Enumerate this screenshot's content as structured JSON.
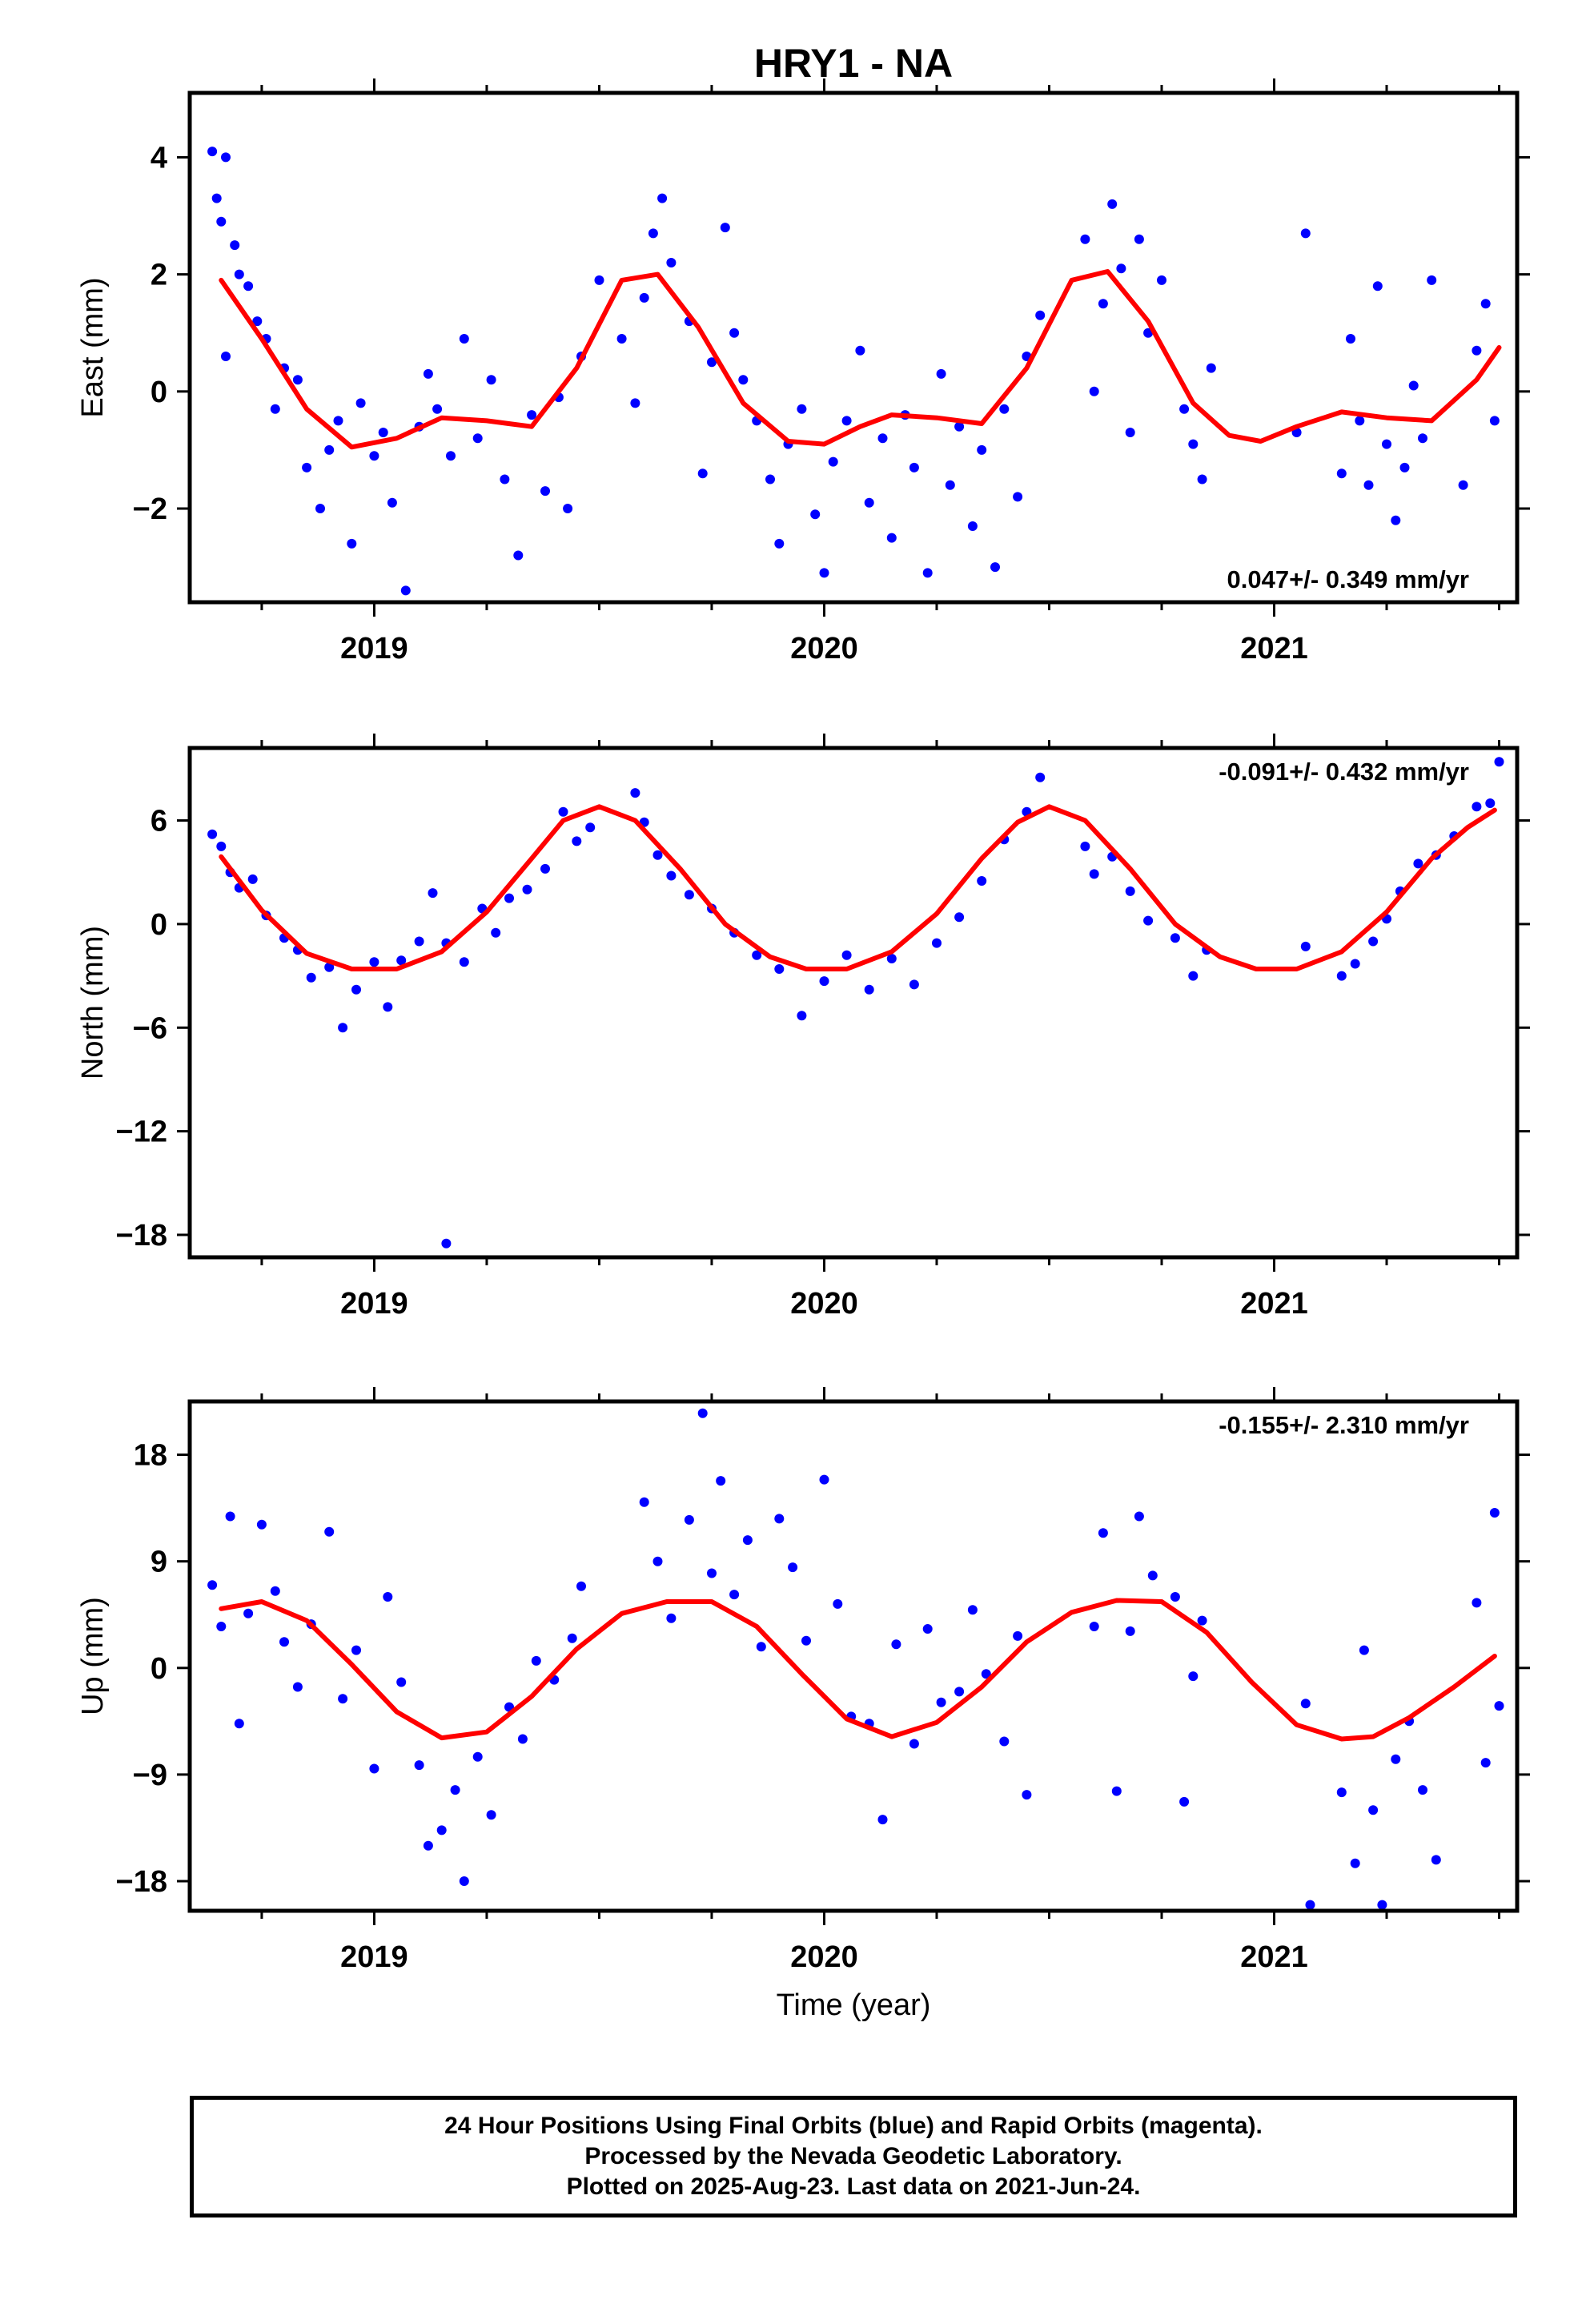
{
  "title": "HRY1 - NA",
  "xlabel": "Time (year)",
  "footer": [
    "24 Hour Positions Using Final Orbits (blue) and Rapid Orbits (magenta).",
    "Processed by the Nevada Geodetic Laboratory.",
    "Plotted on 2025-Aug-23. Last data on 2021-Jun-24."
  ],
  "colors": {
    "points": "#0000ff",
    "fit": "#ff0000",
    "frame": "#000000"
  },
  "chart_data": [
    {
      "type": "scatter",
      "ylabel": "East (mm)",
      "xlim": [
        2018.59,
        2021.54
      ],
      "ylim": [
        -3.6,
        5.1
      ],
      "xticks": [
        2019,
        2020,
        2021
      ],
      "yticks": [
        -2,
        0,
        2,
        4
      ],
      "yticklabels": [
        "−2",
        "0",
        "2",
        "4"
      ],
      "rate": "0.047+/- 0.349 mm/yr",
      "rate_position": "bottom-right",
      "fit": {
        "x": [
          2018.66,
          2018.75,
          2018.85,
          2018.95,
          2019.05,
          2019.15,
          2019.25,
          2019.35,
          2019.45,
          2019.55,
          2019.63,
          2019.72,
          2019.82,
          2019.92,
          2020.0,
          2020.08,
          2020.15,
          2020.25,
          2020.35,
          2020.45,
          2020.55,
          2020.63,
          2020.72,
          2020.82,
          2020.9,
          2020.97,
          2021.05,
          2021.15,
          2021.25,
          2021.35,
          2021.45,
          2021.5
        ],
        "y": [
          1.9,
          0.9,
          -0.3,
          -0.95,
          -0.8,
          -0.45,
          -0.5,
          -0.6,
          0.4,
          1.9,
          2.0,
          1.1,
          -0.2,
          -0.85,
          -0.9,
          -0.6,
          -0.4,
          -0.45,
          -0.55,
          0.4,
          1.9,
          2.05,
          1.2,
          -0.2,
          -0.75,
          -0.85,
          -0.6,
          -0.35,
          -0.45,
          -0.5,
          0.2,
          0.75
        ]
      },
      "x": [
        2018.64,
        2018.65,
        2018.66,
        2018.67,
        2018.67,
        2018.69,
        2018.7,
        2018.72,
        2018.74,
        2018.76,
        2018.78,
        2018.8,
        2018.83,
        2018.85,
        2018.88,
        2018.9,
        2018.92,
        2018.95,
        2018.97,
        2019.0,
        2019.02,
        2019.04,
        2019.07,
        2019.1,
        2019.12,
        2019.14,
        2019.17,
        2019.2,
        2019.23,
        2019.26,
        2019.29,
        2019.32,
        2019.35,
        2019.38,
        2019.41,
        2019.43,
        2019.46,
        2019.5,
        2019.55,
        2019.58,
        2019.6,
        2019.62,
        2019.64,
        2019.66,
        2019.7,
        2019.73,
        2019.75,
        2019.78,
        2019.8,
        2019.82,
        2019.85,
        2019.88,
        2019.9,
        2019.92,
        2019.95,
        2019.98,
        2020.0,
        2020.02,
        2020.05,
        2020.08,
        2020.1,
        2020.13,
        2020.15,
        2020.18,
        2020.2,
        2020.23,
        2020.26,
        2020.28,
        2020.3,
        2020.33,
        2020.35,
        2020.38,
        2020.4,
        2020.43,
        2020.45,
        2020.48,
        2020.58,
        2020.6,
        2020.62,
        2020.64,
        2020.66,
        2020.68,
        2020.7,
        2020.72,
        2020.75,
        2020.8,
        2020.82,
        2020.84,
        2020.86,
        2021.05,
        2021.07,
        2021.15,
        2021.17,
        2021.19,
        2021.21,
        2021.23,
        2021.25,
        2021.27,
        2021.29,
        2021.31,
        2021.33,
        2021.35,
        2021.42,
        2021.45,
        2021.47,
        2021.49
      ],
      "y": [
        4.1,
        3.3,
        2.9,
        0.6,
        4.0,
        2.5,
        2.0,
        1.8,
        1.2,
        0.9,
        -0.3,
        0.4,
        0.2,
        -1.3,
        -2.0,
        -1.0,
        -0.5,
        -2.6,
        -0.2,
        -1.1,
        -0.7,
        -1.9,
        -3.4,
        -0.6,
        0.3,
        -0.3,
        -1.1,
        0.9,
        -0.8,
        0.2,
        -1.5,
        -2.8,
        -0.4,
        -1.7,
        -0.1,
        -2.0,
        0.6,
        1.9,
        0.9,
        -0.2,
        1.6,
        2.7,
        3.3,
        2.2,
        1.2,
        -1.4,
        0.5,
        2.8,
        1.0,
        0.2,
        -0.5,
        -1.5,
        -2.6,
        -0.9,
        -0.3,
        -2.1,
        -3.1,
        -1.2,
        -0.5,
        0.7,
        -1.9,
        -0.8,
        -2.5,
        -0.4,
        -1.3,
        -3.1,
        0.3,
        -1.6,
        -0.6,
        -2.3,
        -1.0,
        -3.0,
        -0.3,
        -1.8,
        0.6,
        1.3,
        2.6,
        0.0,
        1.5,
        3.2,
        2.1,
        -0.7,
        2.6,
        1.0,
        1.9,
        -0.3,
        -0.9,
        -1.5,
        0.4,
        -0.7,
        2.7,
        -1.4,
        0.9,
        -0.5,
        -1.6,
        1.8,
        -0.9,
        -2.2,
        -1.3,
        0.1,
        -0.8,
        1.9,
        -1.6,
        0.7,
        1.5,
        -0.5
      ]
    },
    {
      "type": "scatter",
      "ylabel": "North (mm)",
      "xlim": [
        2018.59,
        2021.54
      ],
      "ylim": [
        -19.3,
        10.2
      ],
      "xticks": [
        2019,
        2020,
        2021
      ],
      "yticks": [
        -18,
        -12,
        -6,
        0,
        6
      ],
      "yticklabels": [
        "−18",
        "−12",
        "−6",
        "0",
        "6"
      ],
      "rate": "-0.091+/- 0.432 mm/yr",
      "rate_position": "top-right",
      "fit": {
        "x": [
          2018.66,
          2018.75,
          2018.85,
          2018.95,
          2019.05,
          2019.15,
          2019.25,
          2019.35,
          2019.42,
          2019.5,
          2019.58,
          2019.68,
          2019.78,
          2019.88,
          2019.96,
          2020.05,
          2020.15,
          2020.25,
          2020.35,
          2020.43,
          2020.5,
          2020.58,
          2020.68,
          2020.78,
          2020.88,
          2020.96,
          2021.05,
          2021.15,
          2021.25,
          2021.35,
          2021.43,
          2021.49
        ],
        "y": [
          3.9,
          0.8,
          -1.7,
          -2.6,
          -2.6,
          -1.6,
          0.7,
          3.8,
          6.0,
          6.8,
          6.0,
          3.2,
          0.0,
          -1.9,
          -2.6,
          -2.6,
          -1.6,
          0.6,
          3.8,
          5.9,
          6.8,
          6.0,
          3.2,
          0.0,
          -1.9,
          -2.6,
          -2.6,
          -1.6,
          0.7,
          3.8,
          5.6,
          6.6
        ]
      },
      "x": [
        2018.64,
        2018.66,
        2018.68,
        2018.7,
        2018.73,
        2018.76,
        2018.8,
        2018.83,
        2018.86,
        2018.9,
        2018.93,
        2018.96,
        2019.0,
        2019.03,
        2019.06,
        2019.1,
        2019.13,
        2019.16,
        2019.2,
        2019.24,
        2019.27,
        2019.3,
        2019.34,
        2019.38,
        2019.42,
        2019.45,
        2019.48,
        2019.58,
        2019.6,
        2019.63,
        2019.66,
        2019.7,
        2019.75,
        2019.8,
        2019.85,
        2019.9,
        2019.95,
        2020.0,
        2020.05,
        2020.1,
        2020.15,
        2020.2,
        2020.25,
        2020.3,
        2020.35,
        2020.4,
        2020.45,
        2020.48,
        2020.58,
        2020.6,
        2020.64,
        2020.68,
        2020.72,
        2020.78,
        2020.82,
        2020.85,
        2021.07,
        2021.15,
        2021.18,
        2021.22,
        2021.25,
        2021.28,
        2021.32,
        2021.36,
        2021.4,
        2021.45,
        2021.48,
        2021.5,
        2019.16
      ],
      "y": [
        5.2,
        4.5,
        3.0,
        2.1,
        2.6,
        0.5,
        -0.8,
        -1.5,
        -3.1,
        -2.5,
        -6.0,
        -3.8,
        -2.2,
        -4.8,
        -2.1,
        -1.0,
        1.8,
        -1.1,
        -2.2,
        0.9,
        -0.5,
        1.5,
        2.0,
        3.2,
        6.5,
        4.8,
        5.6,
        7.6,
        5.9,
        4.0,
        2.8,
        1.7,
        0.9,
        -0.5,
        -1.8,
        -2.6,
        -5.3,
        -3.3,
        -1.8,
        -3.8,
        -2.0,
        -3.5,
        -1.1,
        0.4,
        2.5,
        4.9,
        6.5,
        8.5,
        4.5,
        2.9,
        3.9,
        1.9,
        0.2,
        -0.8,
        -3.0,
        -1.5,
        -1.3,
        -3.0,
        -2.3,
        -1.0,
        0.3,
        1.9,
        3.5,
        4.0,
        5.1,
        6.8,
        7.0,
        9.4,
        -18.5
      ]
    },
    {
      "type": "scatter",
      "ylabel": "Up (mm)",
      "xlim": [
        2018.59,
        2021.54
      ],
      "ylim": [
        -20.5,
        22.5
      ],
      "xticks": [
        2019,
        2020,
        2021
      ],
      "yticks": [
        -18,
        -9,
        0,
        9,
        18
      ],
      "yticklabels": [
        "−18",
        "−9",
        "0",
        "9",
        "18"
      ],
      "rate": "-0.155+/- 2.310 mm/yr",
      "rate_position": "top-right",
      "fit": {
        "x": [
          2018.66,
          2018.75,
          2018.85,
          2018.95,
          2019.05,
          2019.15,
          2019.25,
          2019.35,
          2019.45,
          2019.55,
          2019.65,
          2019.75,
          2019.85,
          2019.95,
          2020.05,
          2020.15,
          2020.25,
          2020.35,
          2020.45,
          2020.55,
          2020.65,
          2020.75,
          2020.85,
          2020.95,
          2021.05,
          2021.15,
          2021.22,
          2021.3,
          2021.4,
          2021.49
        ],
        "y": [
          5.0,
          5.6,
          4.0,
          0.3,
          -3.7,
          -5.9,
          -5.4,
          -2.4,
          1.6,
          4.6,
          5.6,
          5.6,
          3.5,
          -0.5,
          -4.3,
          -5.8,
          -4.6,
          -1.6,
          2.2,
          4.7,
          5.7,
          5.6,
          3.0,
          -1.2,
          -4.8,
          -6.0,
          -5.8,
          -4.2,
          -1.6,
          1.0
        ]
      },
      "x": [
        2018.64,
        2018.66,
        2018.68,
        2018.7,
        2018.72,
        2018.75,
        2018.78,
        2018.8,
        2018.83,
        2018.86,
        2018.9,
        2018.93,
        2018.96,
        2019.0,
        2019.03,
        2019.06,
        2019.1,
        2019.12,
        2019.15,
        2019.18,
        2019.2,
        2019.23,
        2019.26,
        2019.3,
        2019.33,
        2019.36,
        2019.4,
        2019.44,
        2019.46,
        2019.6,
        2019.63,
        2019.66,
        2019.7,
        2019.73,
        2019.75,
        2019.77,
        2019.8,
        2019.83,
        2019.86,
        2019.9,
        2019.93,
        2019.96,
        2020.0,
        2020.03,
        2020.06,
        2020.1,
        2020.13,
        2020.16,
        2020.2,
        2020.23,
        2020.26,
        2020.3,
        2020.33,
        2020.36,
        2020.4,
        2020.43,
        2020.45,
        2020.6,
        2020.62,
        2020.65,
        2020.68,
        2020.7,
        2020.73,
        2020.78,
        2020.8,
        2020.82,
        2020.84,
        2021.07,
        2021.08,
        2021.15,
        2021.18,
        2021.2,
        2021.22,
        2021.24,
        2021.27,
        2021.3,
        2021.33,
        2021.36,
        2021.45,
        2021.47,
        2021.49,
        2021.5
      ],
      "y": [
        7.0,
        3.5,
        12.8,
        -4.7,
        4.6,
        12.1,
        6.5,
        2.2,
        -1.6,
        3.7,
        11.5,
        -2.6,
        1.5,
        -8.5,
        6.0,
        -1.2,
        -8.2,
        -15.0,
        -13.7,
        -10.3,
        -18.0,
        -7.5,
        -12.4,
        -3.3,
        -6.0,
        0.6,
        -1.0,
        2.5,
        6.9,
        14.0,
        9.0,
        4.2,
        12.5,
        21.5,
        8.0,
        15.8,
        6.2,
        10.8,
        1.8,
        12.6,
        8.5,
        2.3,
        15.9,
        5.4,
        -4.1,
        -4.7,
        -12.8,
        2.0,
        -6.4,
        3.3,
        -2.9,
        -2.0,
        4.9,
        -0.5,
        -6.2,
        2.7,
        -10.7,
        3.5,
        11.4,
        -10.4,
        3.1,
        12.8,
        7.8,
        6.0,
        -11.3,
        -0.7,
        4.0,
        -3.0,
        -20.0,
        -10.5,
        -16.5,
        1.5,
        -12.0,
        -20.0,
        -7.7,
        -4.5,
        -10.3,
        -16.2,
        5.5,
        -8.0,
        13.1,
        -3.2
      ]
    }
  ]
}
